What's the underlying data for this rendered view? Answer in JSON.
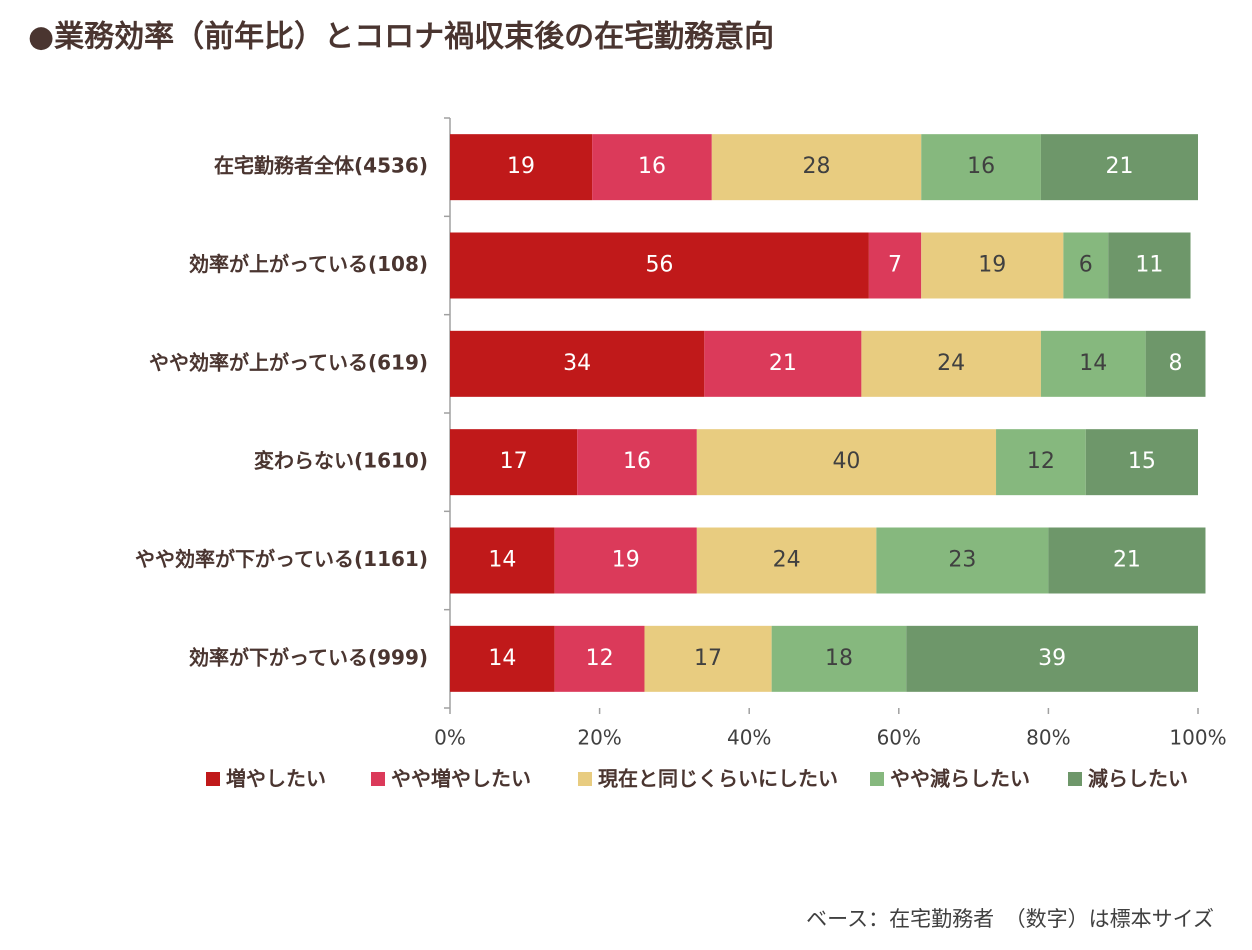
{
  "chart_data": {
    "type": "stacked_barh",
    "title": "●業務効率（前年比）とコロナ禍収束後の在宅勤務意向",
    "note": "ベース：在宅勤務者　（数字）は標本サイズ",
    "categories": [
      "在宅勤務者全体(4536)",
      "効率が上がっている(108)",
      "やや効率が上がっている(619)",
      "変わらない(1610)",
      "やや効率が下がっている(1161)",
      "効率が下がっている(999)"
    ],
    "series": [
      {
        "name": "増やしたい",
        "color": "#c0191a",
        "label_color": "#ffffff",
        "values": [
          19,
          56,
          34,
          17,
          14,
          14
        ]
      },
      {
        "name": "やや増やしたい",
        "color": "#db3a5a",
        "label_color": "#ffffff",
        "values": [
          16,
          7,
          21,
          16,
          19,
          12
        ]
      },
      {
        "name": "現在と同じくらいにしたい",
        "color": "#e8cc80",
        "label_color": "#404040",
        "values": [
          28,
          19,
          24,
          40,
          24,
          17
        ]
      },
      {
        "name": "やや減らしたい",
        "color": "#86b87e",
        "label_color": "#404040",
        "values": [
          16,
          6,
          14,
          12,
          23,
          18
        ]
      },
      {
        "name": "減らしたい",
        "color": "#6e976a",
        "label_color": "#ffffff",
        "values": [
          21,
          11,
          8,
          15,
          21,
          39
        ]
      }
    ],
    "xlim": [
      0,
      100
    ],
    "xticks": [
      {
        "value": 0,
        "label": "0%"
      },
      {
        "value": 20,
        "label": "20%"
      },
      {
        "value": 40,
        "label": "40%"
      },
      {
        "value": 60,
        "label": "60%"
      },
      {
        "value": 80,
        "label": "80%"
      },
      {
        "value": 100,
        "label": "100%"
      }
    ]
  }
}
